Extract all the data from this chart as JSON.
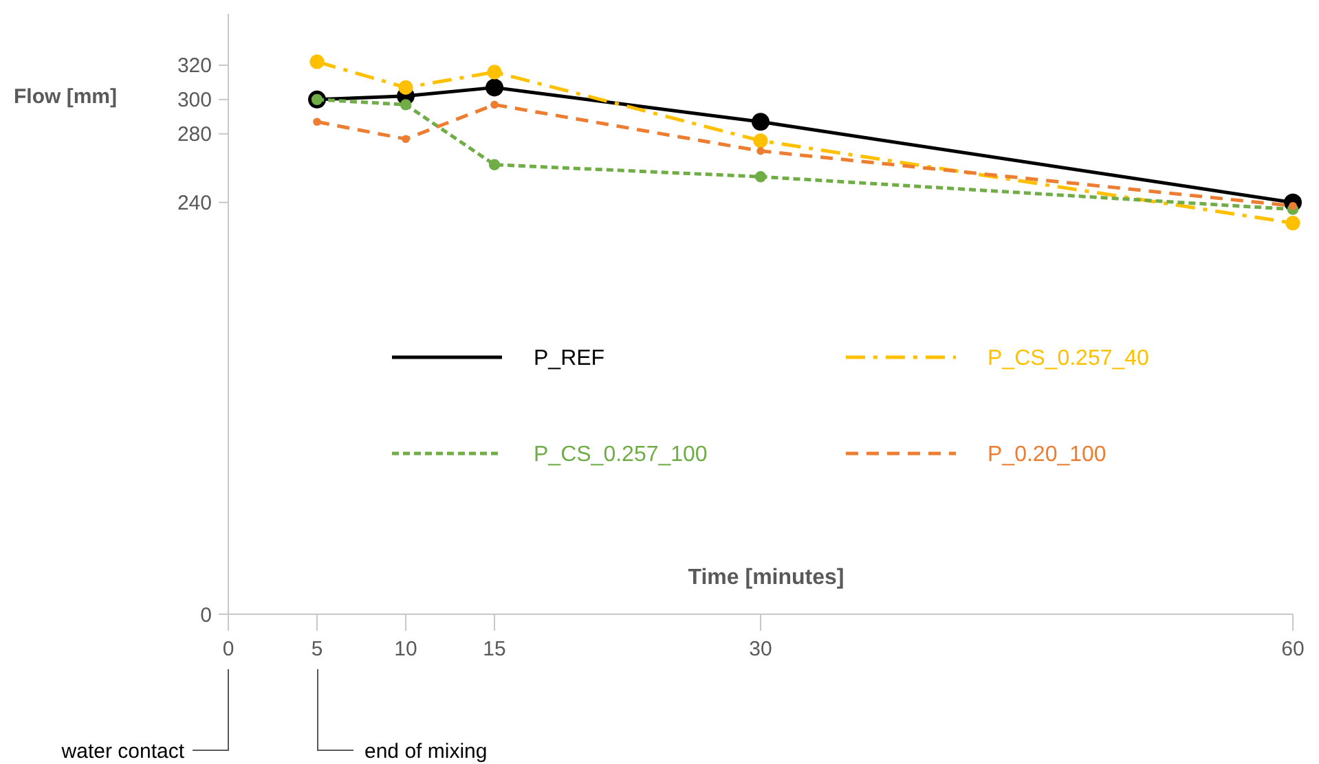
{
  "chart_data": {
    "type": "line",
    "xlabel": "Time [minutes]",
    "ylabel": "Flow [mm]",
    "x": [
      5,
      10,
      15,
      30,
      60
    ],
    "series": [
      {
        "name": "P_REF",
        "color": "#000000",
        "line_style": "solid",
        "values": [
          300,
          302,
          307,
          287,
          240
        ]
      },
      {
        "name": "P_CS_0.257_40",
        "color": "#ffc000",
        "line_style": "dashdot",
        "values": [
          322,
          307,
          316,
          276,
          228
        ]
      },
      {
        "name": "P_CS_0.257_100",
        "color": "#70ad47",
        "line_style": "dotted",
        "values": [
          300,
          297,
          262,
          255,
          236
        ]
      },
      {
        "name": "P_0.20_100",
        "color": "#ed7d31",
        "line_style": "dashed",
        "values": [
          287,
          277,
          297,
          270,
          238
        ]
      }
    ],
    "xlim": [
      0,
      60
    ],
    "xticks": [
      0,
      5,
      10,
      15,
      30,
      60
    ],
    "ylim": [
      0,
      350
    ],
    "yticks": [
      0,
      240,
      280,
      300,
      320
    ],
    "marker": "circle",
    "grid": false,
    "legend": "center",
    "annotations": [
      "water contact",
      "end of mixing"
    ]
  }
}
